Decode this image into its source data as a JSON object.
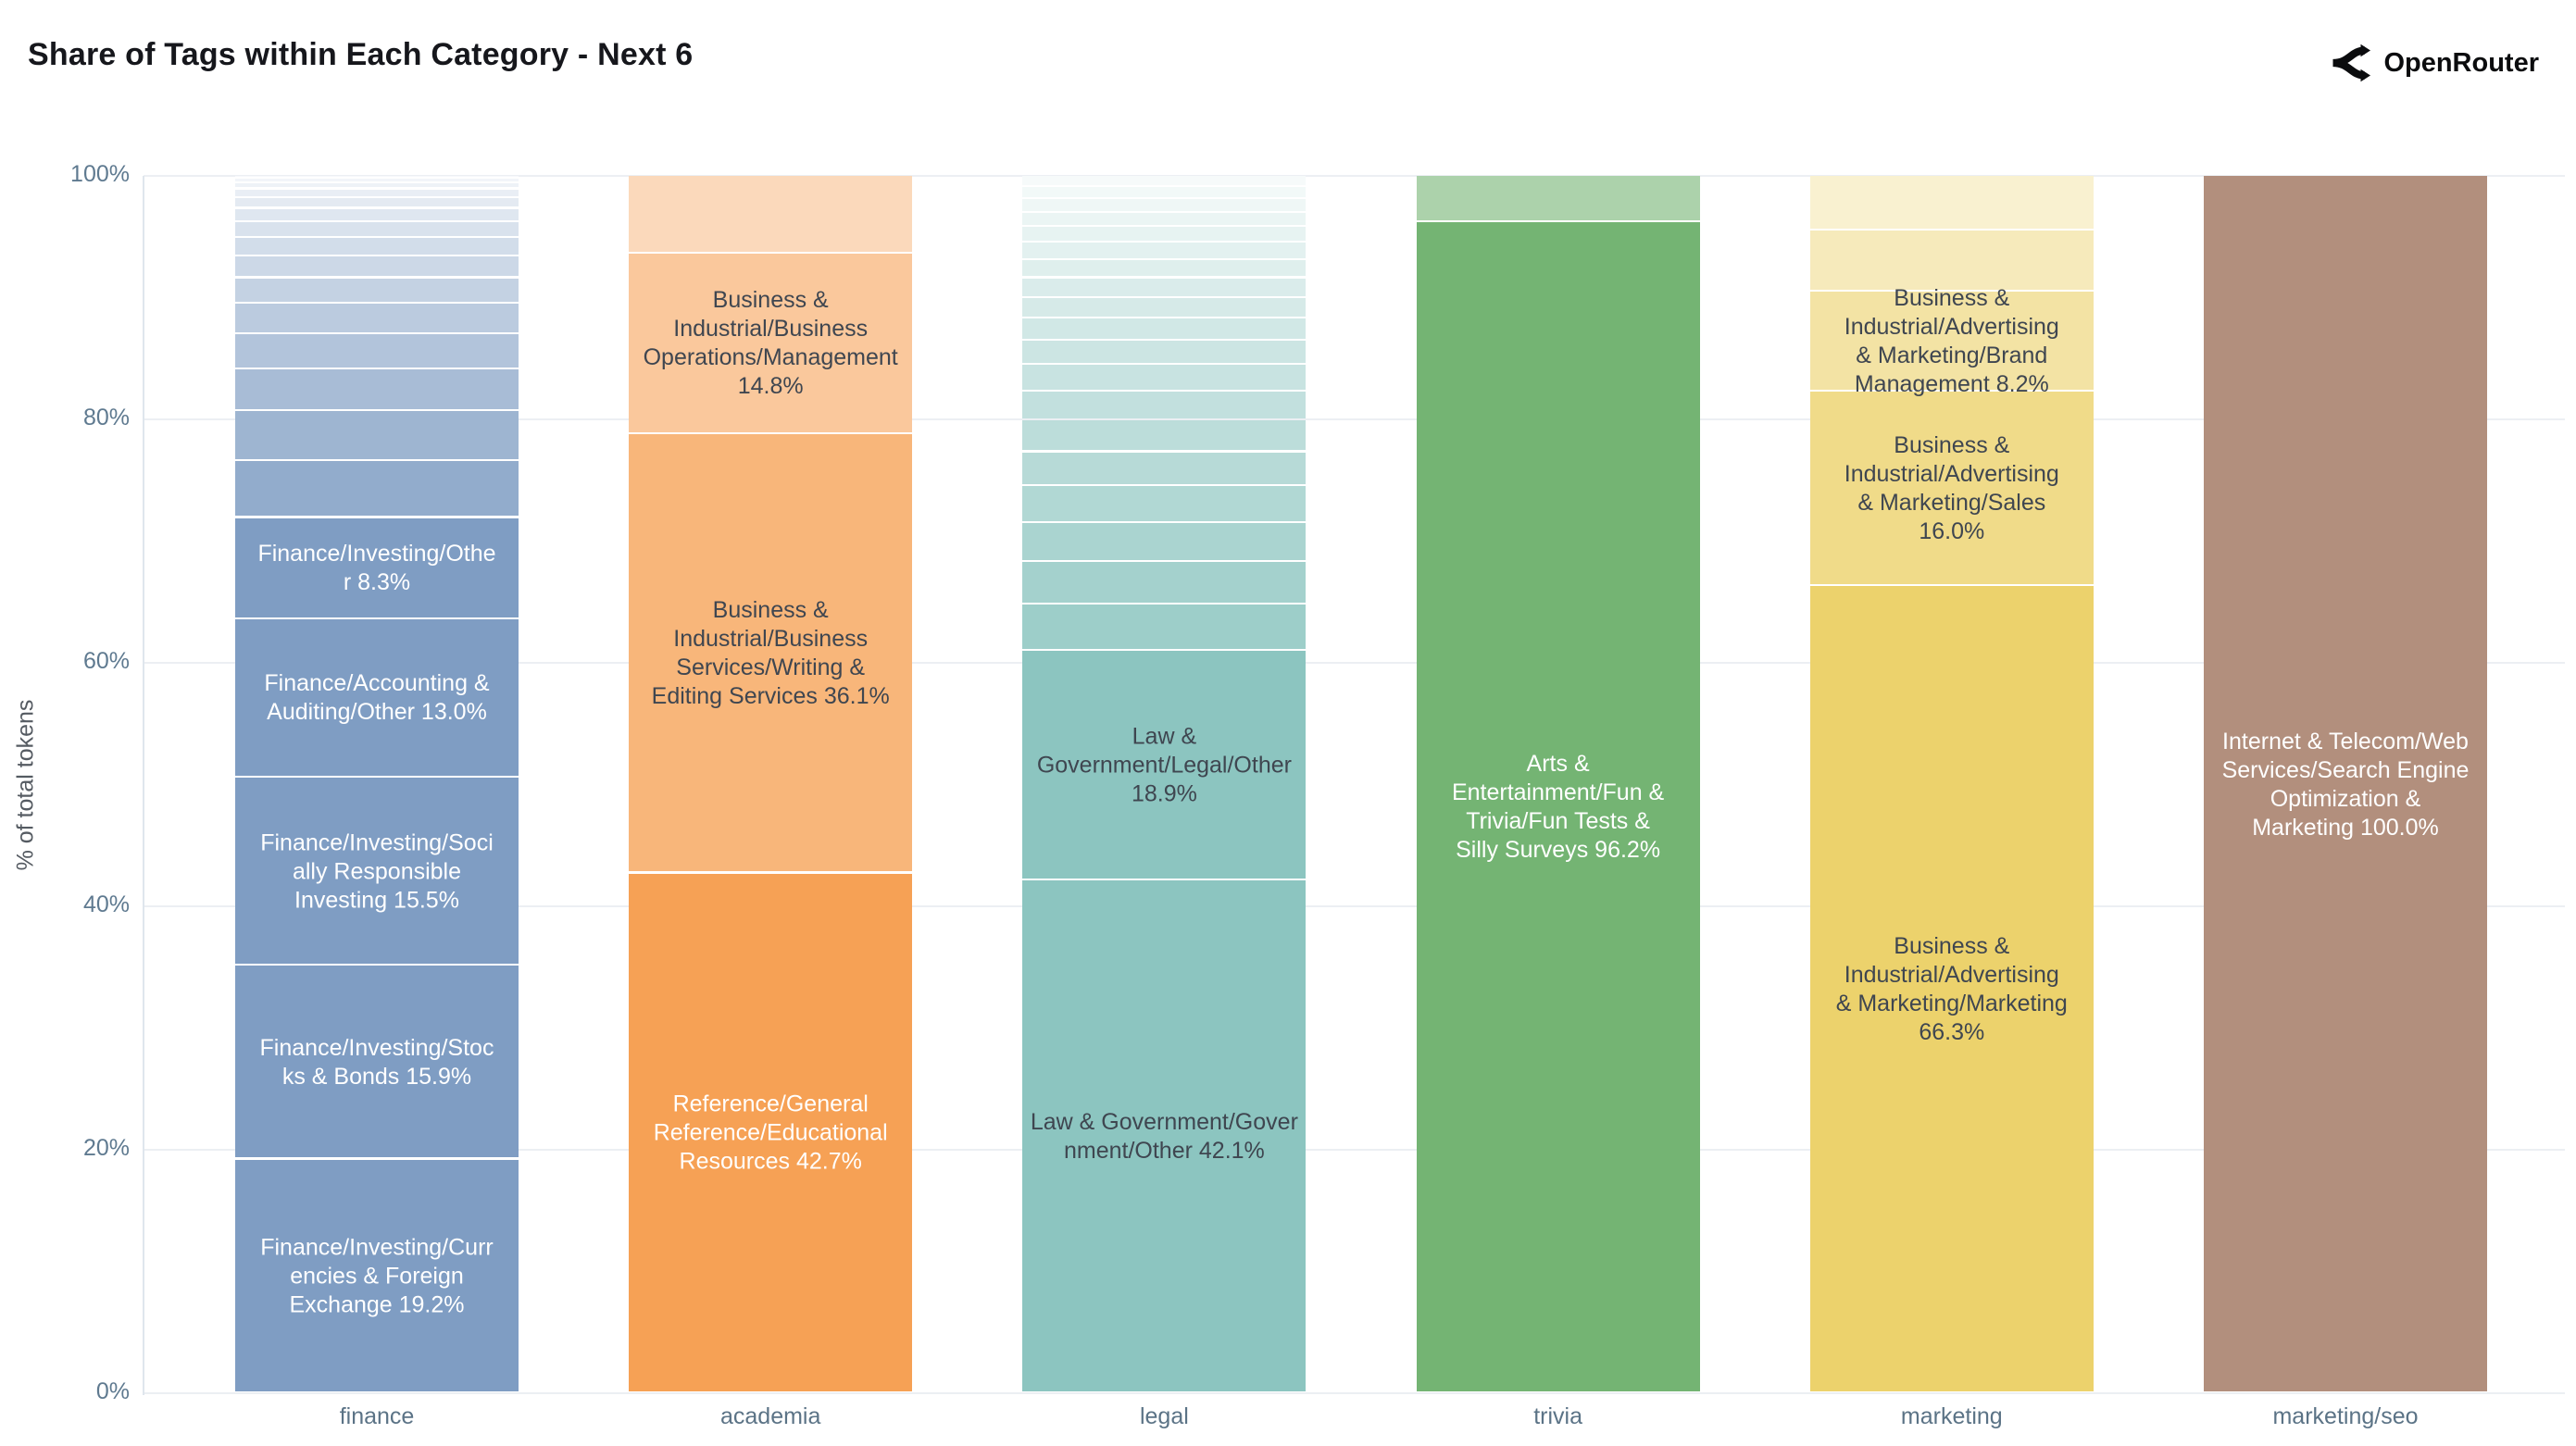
{
  "header": {
    "title": "Share of Tags within Each Category - Next 6",
    "logo_text": "OpenRouter"
  },
  "chart_data": {
    "type": "bar",
    "stacked": true,
    "units": "percent",
    "title": "Share of Tags within Each Category - Next 6",
    "ylabel": "% of total tokens",
    "ylim": [
      0,
      100
    ],
    "yticks": [
      "0%",
      "20%",
      "40%",
      "60%",
      "80%",
      "100%"
    ],
    "grid": true,
    "legend": "none",
    "categories": [
      "finance",
      "academia",
      "legal",
      "trivia",
      "marketing",
      "marketing/seo"
    ],
    "bars": [
      {
        "category": "finance",
        "base_color": "#7f9dc3",
        "segments": [
          {
            "value": 19.2,
            "label": "Finance/Investing/Currencies & Foreign Exchange",
            "text": "Finance/Investing/Curr\nencies & Foreign\nExchange 19.2%",
            "text_color": "#ffffff",
            "alpha": 1
          },
          {
            "value": 15.9,
            "label": "Finance/Investing/Stocks & Bonds",
            "text": "Finance/Investing/Stoc\nks & Bonds 15.9%",
            "text_color": "#ffffff",
            "alpha": 1
          },
          {
            "value": 15.5,
            "label": "Finance/Investing/Socially Responsible Investing",
            "text": "Finance/Investing/Soci\nally Responsible\nInvesting 15.5%",
            "text_color": "#ffffff",
            "alpha": 1
          },
          {
            "value": 13.0,
            "label": "Finance/Accounting & Auditing/Other",
            "text": "Finance/Accounting &\nAuditing/Other 13.0%",
            "text_color": "#ffffff",
            "alpha": 1
          },
          {
            "value": 8.3,
            "label": "Finance/Investing/Other",
            "text": "Finance/Investing/Othe\nr 8.3%",
            "text_color": "#ffffff",
            "alpha": 1
          },
          {
            "value": 4.7,
            "label": null,
            "text": null,
            "alpha": 0.85
          },
          {
            "value": 4.1,
            "label": null,
            "text": null,
            "alpha": 0.76
          },
          {
            "value": 3.4,
            "label": null,
            "text": null,
            "alpha": 0.68
          },
          {
            "value": 2.9,
            "label": null,
            "text": null,
            "alpha": 0.6
          },
          {
            "value": 2.5,
            "label": null,
            "text": null,
            "alpha": 0.53
          },
          {
            "value": 2.1,
            "label": null,
            "text": null,
            "alpha": 0.46
          },
          {
            "value": 1.8,
            "label": null,
            "text": null,
            "alpha": 0.4
          },
          {
            "value": 1.5,
            "label": null,
            "text": null,
            "alpha": 0.35
          },
          {
            "value": 1.3,
            "label": null,
            "text": null,
            "alpha": 0.3
          },
          {
            "value": 1.1,
            "label": null,
            "text": null,
            "alpha": 0.25
          },
          {
            "value": 0.9,
            "label": null,
            "text": null,
            "alpha": 0.21
          },
          {
            "value": 0.7,
            "label": null,
            "text": null,
            "alpha": 0.17
          },
          {
            "value": 0.5,
            "label": null,
            "text": null,
            "alpha": 0.13
          },
          {
            "value": 0.4,
            "label": null,
            "text": null,
            "alpha": 0.1
          },
          {
            "value": 0.2,
            "label": null,
            "text": null,
            "alpha": 0.07
          }
        ]
      },
      {
        "category": "academia",
        "base_color": "#f6a155",
        "segments": [
          {
            "value": 42.7,
            "label": "Reference/General Reference/Educational Resources",
            "text": "Reference/General\nReference/Educational\nResources 42.7%",
            "text_color": "#ffffff",
            "alpha": 1
          },
          {
            "value": 36.1,
            "label": "Business & Industrial/Business Services/Writing & Editing Services",
            "text": "Business &\nIndustrial/Business\nServices/Writing &\nEditing Services 36.1%",
            "text_color": "#3f4650",
            "alpha": 0.78
          },
          {
            "value": 14.8,
            "label": "Business & Industrial/Business Operations/Management",
            "text": "Business &\nIndustrial/Business\nOperations/Management\n14.8%",
            "text_color": "#3f4650",
            "alpha": 0.58
          },
          {
            "value": 6.4,
            "label": null,
            "text": null,
            "alpha": 0.4
          }
        ]
      },
      {
        "category": "legal",
        "base_color": "#8cc5c0",
        "segments": [
          {
            "value": 42.1,
            "label": "Law & Government/Government/Other",
            "text": "Law & Government/Gover\nnment/Other 42.1%",
            "text_color": "#3f4650",
            "alpha": 1
          },
          {
            "value": 18.9,
            "label": "Law & Government/Legal/Other",
            "text": "Law &\nGovernment/Legal/Other\n18.9%",
            "text_color": "#3f4650",
            "alpha": 1
          },
          {
            "value": 3.8,
            "label": null,
            "text": null,
            "alpha": 0.85
          },
          {
            "value": 3.5,
            "label": null,
            "text": null,
            "alpha": 0.79
          },
          {
            "value": 3.2,
            "label": null,
            "text": null,
            "alpha": 0.74
          },
          {
            "value": 3.0,
            "label": null,
            "text": null,
            "alpha": 0.68
          },
          {
            "value": 2.8,
            "label": null,
            "text": null,
            "alpha": 0.63
          },
          {
            "value": 2.6,
            "label": null,
            "text": null,
            "alpha": 0.58
          },
          {
            "value": 2.4,
            "label": null,
            "text": null,
            "alpha": 0.53
          },
          {
            "value": 2.2,
            "label": null,
            "text": null,
            "alpha": 0.48
          },
          {
            "value": 2.0,
            "label": null,
            "text": null,
            "alpha": 0.44
          },
          {
            "value": 1.8,
            "label": null,
            "text": null,
            "alpha": 0.4
          },
          {
            "value": 1.7,
            "label": null,
            "text": null,
            "alpha": 0.36
          },
          {
            "value": 1.6,
            "label": null,
            "text": null,
            "alpha": 0.32
          },
          {
            "value": 1.5,
            "label": null,
            "text": null,
            "alpha": 0.28
          },
          {
            "value": 1.4,
            "label": null,
            "text": null,
            "alpha": 0.24
          },
          {
            "value": 1.3,
            "label": null,
            "text": null,
            "alpha": 0.21
          },
          {
            "value": 1.2,
            "label": null,
            "text": null,
            "alpha": 0.17
          },
          {
            "value": 1.1,
            "label": null,
            "text": null,
            "alpha": 0.14
          },
          {
            "value": 1.0,
            "label": null,
            "text": null,
            "alpha": 0.11
          },
          {
            "value": 0.9,
            "label": null,
            "text": null,
            "alpha": 0.08
          }
        ]
      },
      {
        "category": "trivia",
        "base_color": "#74b473",
        "segments": [
          {
            "value": 96.2,
            "label": "Arts & Entertainment/Fun & Trivia/Fun Tests & Silly Surveys",
            "text": "Arts &\nEntertainment/Fun &\nTrivia/Fun Tests &\nSilly Surveys 96.2%",
            "text_color": "#ffffff",
            "alpha": 1
          },
          {
            "value": 3.8,
            "label": null,
            "text": null,
            "alpha": 0.6
          }
        ]
      },
      {
        "category": "marketing",
        "base_color": "#ecd26c",
        "segments": [
          {
            "value": 66.3,
            "label": "Business & Industrial/Advertising & Marketing/Marketing",
            "text": "Business &\nIndustrial/Advertising\n& Marketing/Marketing\n66.3%",
            "text_color": "#3f4650",
            "alpha": 1
          },
          {
            "value": 16.0,
            "label": "Business & Industrial/Advertising & Marketing/Sales",
            "text": "Business &\nIndustrial/Advertising\n& Marketing/Sales\n16.0%",
            "text_color": "#3f4650",
            "alpha": 0.8
          },
          {
            "value": 8.2,
            "label": "Business & Industrial/Advertising & Marketing/Brand Management",
            "text": "Business &\nIndustrial/Advertising\n& Marketing/Brand\nManagement 8.2%",
            "text_color": "#3f4650",
            "alpha": 0.62
          },
          {
            "value": 5.0,
            "label": null,
            "text": null,
            "alpha": 0.46
          },
          {
            "value": 4.5,
            "label": null,
            "text": null,
            "alpha": 0.32
          }
        ]
      },
      {
        "category": "marketing/seo",
        "base_color": "#b28f7d",
        "segments": [
          {
            "value": 100.0,
            "label": "Internet & Telecom/Web Services/Search Engine Optimization & Marketing",
            "text": "Internet & Telecom/Web\nServices/Search Engine\nOptimization &\nMarketing 100.0%",
            "text_color": "#ffffff",
            "alpha": 1
          }
        ]
      }
    ]
  }
}
